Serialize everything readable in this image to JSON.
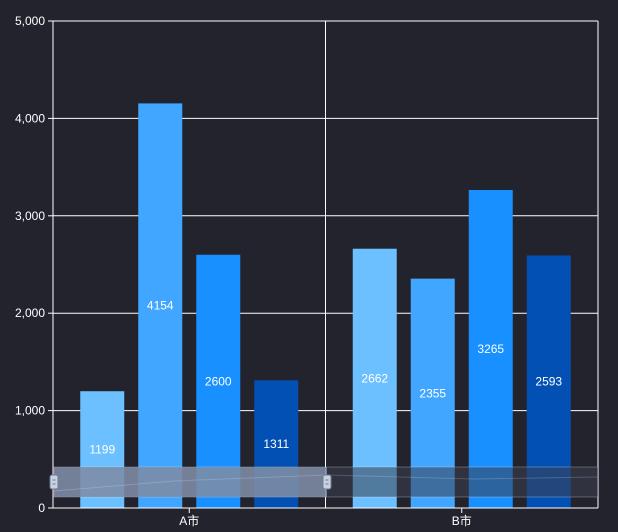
{
  "chart_data": {
    "type": "bar",
    "categories": [
      "A市",
      "B市"
    ],
    "series": [
      {
        "values": [
          1199,
          2662
        ],
        "color": "#6cc0ff"
      },
      {
        "values": [
          4154,
          2355
        ],
        "color": "#40a6ff"
      },
      {
        "values": [
          2600,
          3265
        ],
        "color": "#1890ff"
      },
      {
        "values": [
          1311,
          2593
        ],
        "color": "#0350b4"
      }
    ],
    "yticks": [
      "0",
      "1,000",
      "2,000",
      "3,000",
      "4,000",
      "5,000"
    ],
    "ylim": [
      0,
      5000
    ],
    "grid": true,
    "data_labels": true,
    "datazoom": {
      "start": 0,
      "end": 100
    }
  },
  "colors": {
    "background": "#23232d",
    "grid": "#ffffff",
    "text": "#ffffff",
    "slider_fill": "#8a9bb5"
  }
}
